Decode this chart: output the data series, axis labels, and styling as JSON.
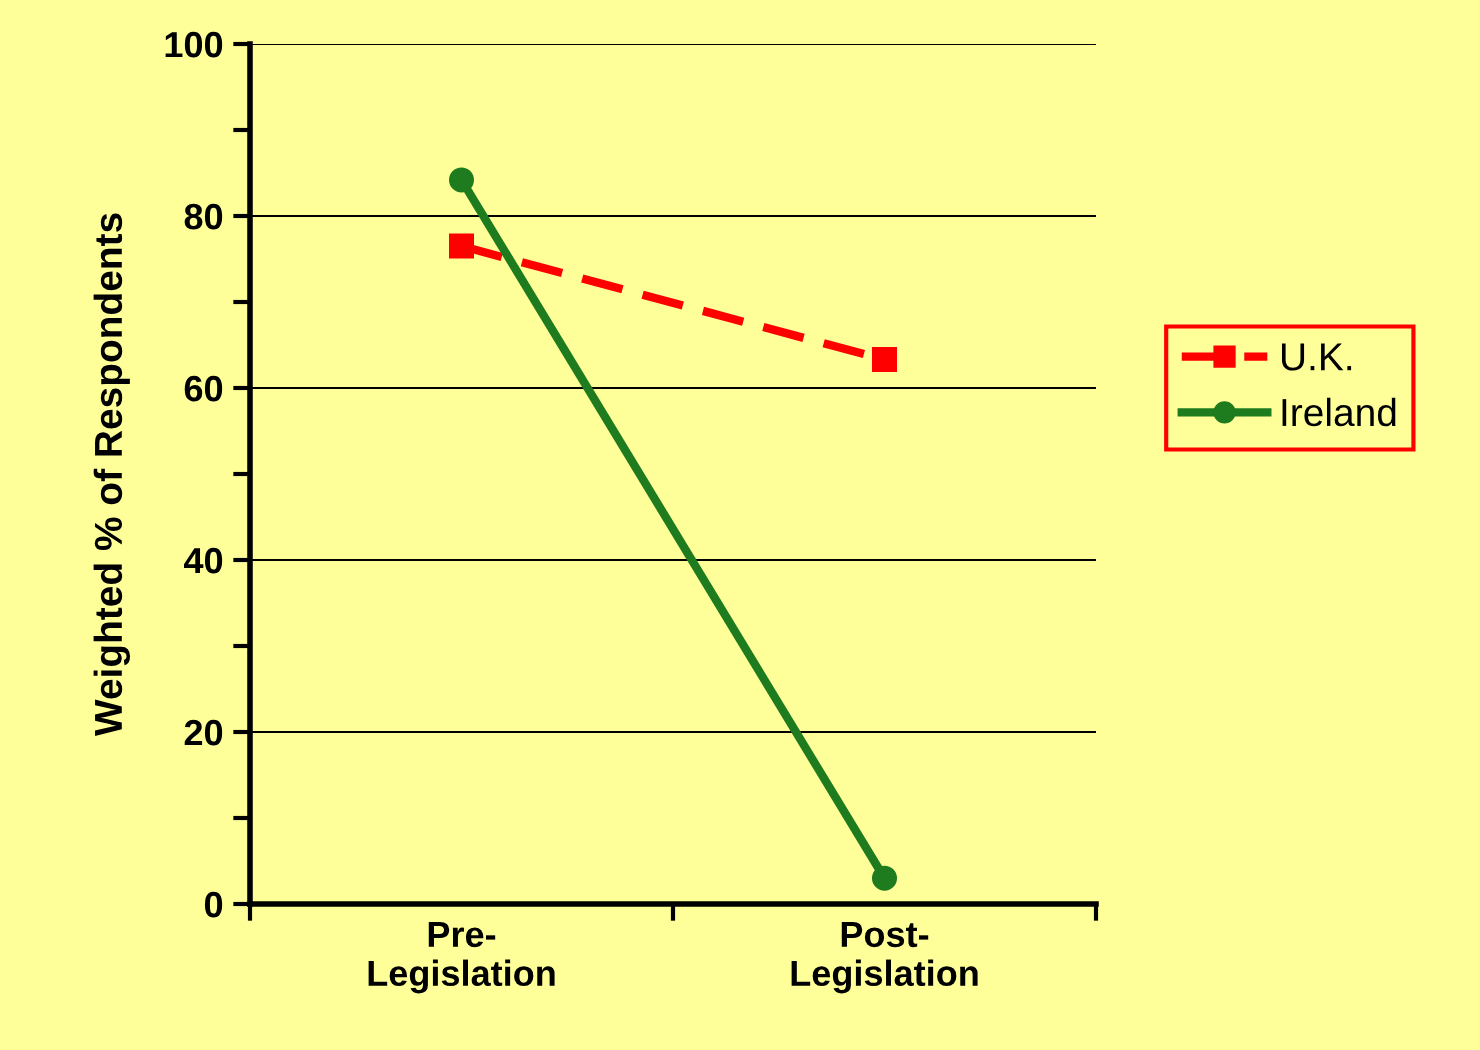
{
  "chart_data": {
    "type": "line",
    "ylabel": "Weighted % of Respondents",
    "categories": [
      "Pre-\nLegislation",
      "Post-\nLegislation"
    ],
    "series": [
      {
        "name": "U.K.",
        "color": "#ff0000",
        "values": [
          76.5,
          63.3
        ],
        "marker": "square",
        "line_style": "dashed"
      },
      {
        "name": "Ireland",
        "color": "#1e7b1e",
        "values": [
          84.2,
          3.0
        ],
        "marker": "circle",
        "line_style": "solid"
      }
    ],
    "ylim": [
      0,
      100
    ],
    "yticks": [
      0,
      {
        "value": 10,
        "label": null
      },
      20,
      {
        "value": 30,
        "label": null
      },
      40,
      {
        "value": 50,
        "label": null
      },
      60,
      {
        "value": 70,
        "label": null
      },
      80,
      {
        "value": 90,
        "label": null
      },
      100
    ],
    "grid": "y",
    "legend": "right"
  }
}
